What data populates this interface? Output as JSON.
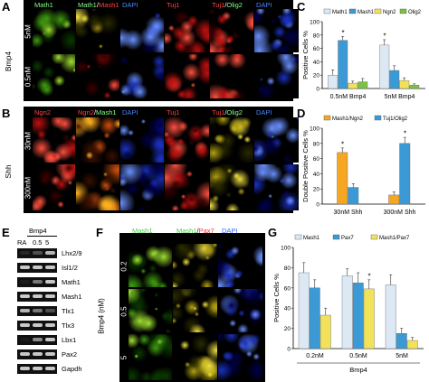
{
  "panels": {
    "A": "A",
    "B": "B",
    "C": "C",
    "D": "D",
    "E": "E",
    "F": "F",
    "G": "G"
  },
  "panelA": {
    "side_label": "Bmp4",
    "rows": [
      "5nM",
      "0.5nM"
    ],
    "columns": [
      {
        "parts": [
          {
            "t": "Math1",
            "c": "#8f8"
          }
        ]
      },
      {
        "parts": [
          {
            "t": "Math1",
            "c": "#8f8"
          },
          {
            "t": "/",
            "c": "#fff"
          },
          {
            "t": "Mash1",
            "c": "#f44"
          }
        ]
      },
      {
        "parts": [
          {
            "t": "DAPI",
            "c": "#48f"
          }
        ]
      },
      {
        "parts": [
          {
            "t": "Tuj1",
            "c": "#f44"
          }
        ]
      },
      {
        "parts": [
          {
            "t": "Tuj1",
            "c": "#f44"
          },
          {
            "t": "/",
            "c": "#fff"
          },
          {
            "t": "Olig2",
            "c": "#8f8"
          }
        ]
      },
      {
        "parts": [
          {
            "t": "DAPI",
            "c": "#48f"
          }
        ]
      }
    ]
  },
  "panelB": {
    "side_label": "Shh",
    "rows": [
      "30nM",
      "300nM"
    ],
    "columns": [
      {
        "parts": [
          {
            "t": "Ngn2",
            "c": "#f44"
          }
        ]
      },
      {
        "parts": [
          {
            "t": "Ngn2",
            "c": "#f44"
          },
          {
            "t": "/",
            "c": "#fff"
          },
          {
            "t": "Mash1",
            "c": "#8f8"
          }
        ]
      },
      {
        "parts": [
          {
            "t": "DAPI",
            "c": "#48f"
          }
        ]
      },
      {
        "parts": [
          {
            "t": "Tuj1",
            "c": "#f44"
          }
        ]
      },
      {
        "parts": [
          {
            "t": "Tuj1",
            "c": "#f44"
          },
          {
            "t": "/",
            "c": "#fff"
          },
          {
            "t": "Olig2",
            "c": "#8f8"
          }
        ]
      },
      {
        "parts": [
          {
            "t": "DAPI",
            "c": "#48f"
          }
        ]
      }
    ]
  },
  "panelE": {
    "treatment": "Bmp4",
    "lanes": [
      "RA",
      "0.5",
      "5"
    ],
    "genes": [
      "Lhx2/9",
      "Isl1/2",
      "Math1",
      "Mash1",
      "Tlx1",
      "Tlx3",
      "Lbx1",
      "Pax2",
      "Gapdh"
    ],
    "band_intensity": [
      [
        0.1,
        0.3,
        0.8
      ],
      [
        0.9,
        0.9,
        0.9
      ],
      [
        0.05,
        0.5,
        0.9
      ],
      [
        0.9,
        0.9,
        0.9
      ],
      [
        0.8,
        0.5,
        0.3
      ],
      [
        0.9,
        0.9,
        0.9
      ],
      [
        0.05,
        0.6,
        0.9
      ],
      [
        0.9,
        0.9,
        0.9
      ],
      [
        0.9,
        0.9,
        0.9
      ]
    ]
  },
  "panelF": {
    "side_label": "Bmp4 (nM)",
    "rows": [
      "0.2",
      "0.5",
      "5"
    ],
    "columns": [
      {
        "parts": [
          {
            "t": "Mash1",
            "c": "#4c4"
          }
        ]
      },
      {
        "parts": [
          {
            "t": "Mash1",
            "c": "#4c4"
          },
          {
            "t": "/",
            "c": "#000"
          },
          {
            "t": "Pax7",
            "c": "#e33"
          }
        ]
      },
      {
        "parts": [
          {
            "t": "DAPI",
            "c": "#36f"
          }
        ]
      }
    ]
  },
  "chart_data": [
    {
      "id": "C",
      "type": "bar",
      "ylabel": "Positive Cells %",
      "ylim": [
        0,
        100
      ],
      "yticks": [
        0,
        20,
        40,
        60,
        80,
        100
      ],
      "categories": [
        "0.5nM Bmp4",
        "5nM Bmp4"
      ],
      "series": [
        {
          "name": "Math1",
          "color": "#dce9f4",
          "values": [
            20,
            65
          ],
          "errors": [
            8,
            8
          ]
        },
        {
          "name": "Mash1",
          "color": "#3b9ad6",
          "values": [
            72,
            27
          ],
          "errors": [
            6,
            7
          ]
        },
        {
          "name": "Ngn2",
          "color": "#f2e25a",
          "values": [
            8,
            12
          ],
          "errors": [
            3,
            4
          ]
        },
        {
          "name": "Olig2",
          "color": "#7cc242",
          "values": [
            10,
            5
          ],
          "errors": [
            5,
            2
          ]
        }
      ],
      "significance": [
        "*",
        "*"
      ]
    },
    {
      "id": "D",
      "type": "bar",
      "ylabel": "Double Positive Cells %",
      "ylim": [
        0,
        100
      ],
      "yticks": [
        0,
        20,
        40,
        60,
        80,
        100
      ],
      "categories": [
        "30nM Shh",
        "300nM Shh"
      ],
      "series": [
        {
          "name": "Mash1/Ngn2",
          "color": "#f5a623",
          "values": [
            68,
            12
          ],
          "errors": [
            6,
            4
          ]
        },
        {
          "name": "Tuj1/Olig2",
          "color": "#3b9ad6",
          "values": [
            22,
            80
          ],
          "errors": [
            5,
            8
          ]
        }
      ],
      "significance": [
        "*",
        "*"
      ]
    },
    {
      "id": "G",
      "type": "bar",
      "ylabel": "Positive Cells %",
      "xlabel": "Bmp4",
      "ylim": [
        0,
        100
      ],
      "yticks": [
        0,
        20,
        40,
        60,
        80,
        100
      ],
      "categories": [
        "0.2nM",
        "0.5nM",
        "5nM"
      ],
      "series": [
        {
          "name": "Mash1",
          "color": "#dce9f4",
          "values": [
            75,
            72,
            63
          ],
          "errors": [
            10,
            7,
            10
          ]
        },
        {
          "name": "Pax7",
          "color": "#3b9ad6",
          "values": [
            60,
            65,
            15
          ],
          "errors": [
            8,
            10,
            5
          ]
        },
        {
          "name": "Mash1/Pax7",
          "color": "#f2e25a",
          "values": [
            33,
            59,
            8
          ],
          "errors": [
            7,
            9,
            3
          ]
        }
      ],
      "significance": [
        "",
        "*",
        ""
      ]
    }
  ]
}
